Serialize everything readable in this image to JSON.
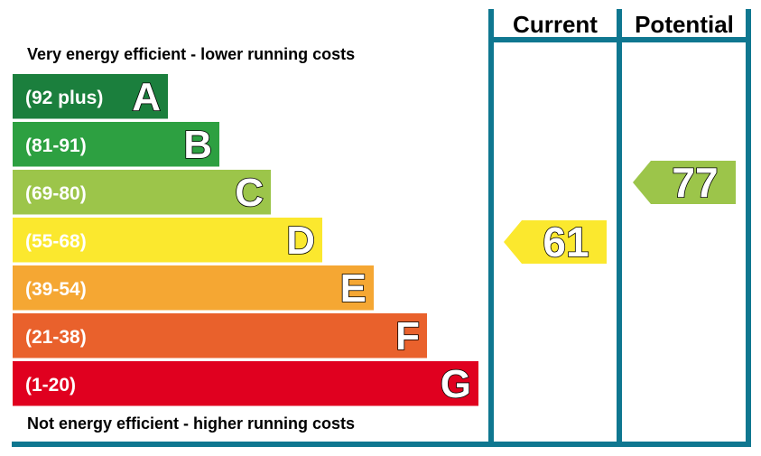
{
  "chart_data": {
    "type": "bar",
    "columns": {
      "current": "Current",
      "potential": "Potential"
    },
    "top_caption": "Very energy efficient - lower running costs",
    "bottom_caption": "Not energy efficient - higher running costs",
    "bands": [
      {
        "letter": "A",
        "range": "(92 plus)",
        "color": "#1b7f3d"
      },
      {
        "letter": "B",
        "range": "(81-91)",
        "color": "#2da041"
      },
      {
        "letter": "C",
        "range": "(69-80)",
        "color": "#9cc54a"
      },
      {
        "letter": "D",
        "range": "(55-68)",
        "color": "#fbe82e"
      },
      {
        "letter": "E",
        "range": "(39-54)",
        "color": "#f5a733"
      },
      {
        "letter": "F",
        "range": "(21-38)",
        "color": "#e9612c"
      },
      {
        "letter": "G",
        "range": "(1-20)",
        "color": "#e0001f"
      }
    ],
    "current": {
      "value": 61,
      "band": "D",
      "color": "#fbe82e"
    },
    "potential": {
      "value": 77,
      "band": "C",
      "color": "#9cc54a"
    },
    "frame_color": "#0f7790"
  }
}
